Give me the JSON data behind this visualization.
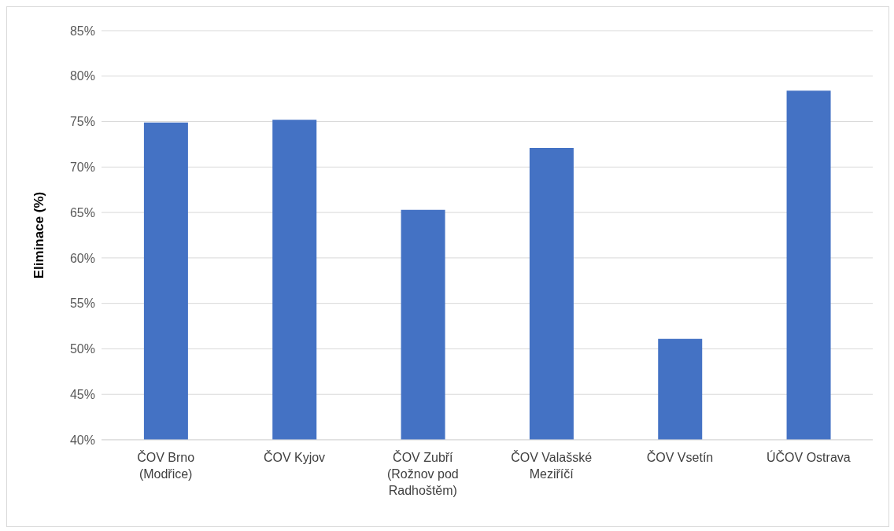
{
  "chart_data": {
    "type": "bar",
    "ylabel": "Eliminace (%)",
    "categories": [
      "ČOV Brno (Modřice)",
      "ČOV Kyjov",
      "ČOV Zubří (Rožnov pod Radhoštěm)",
      "ČOV Valašské Meziříčí",
      "ČOV Vsetín",
      "ÚČOV Ostrava"
    ],
    "values": [
      74.9,
      75.2,
      65.3,
      72.1,
      51.1,
      78.4
    ],
    "color": "#4472c4",
    "ylim": [
      40,
      85
    ],
    "yticks": [
      {
        "value": 40,
        "label": "40%"
      },
      {
        "value": 45,
        "label": "45%"
      },
      {
        "value": 50,
        "label": "50%"
      },
      {
        "value": 55,
        "label": "55%"
      },
      {
        "value": 60,
        "label": "60%"
      },
      {
        "value": 65,
        "label": "65%"
      },
      {
        "value": 70,
        "label": "70%"
      },
      {
        "value": 75,
        "label": "75%"
      },
      {
        "value": 80,
        "label": "80%"
      },
      {
        "value": 85,
        "label": "85%"
      }
    ],
    "grid": "y"
  }
}
